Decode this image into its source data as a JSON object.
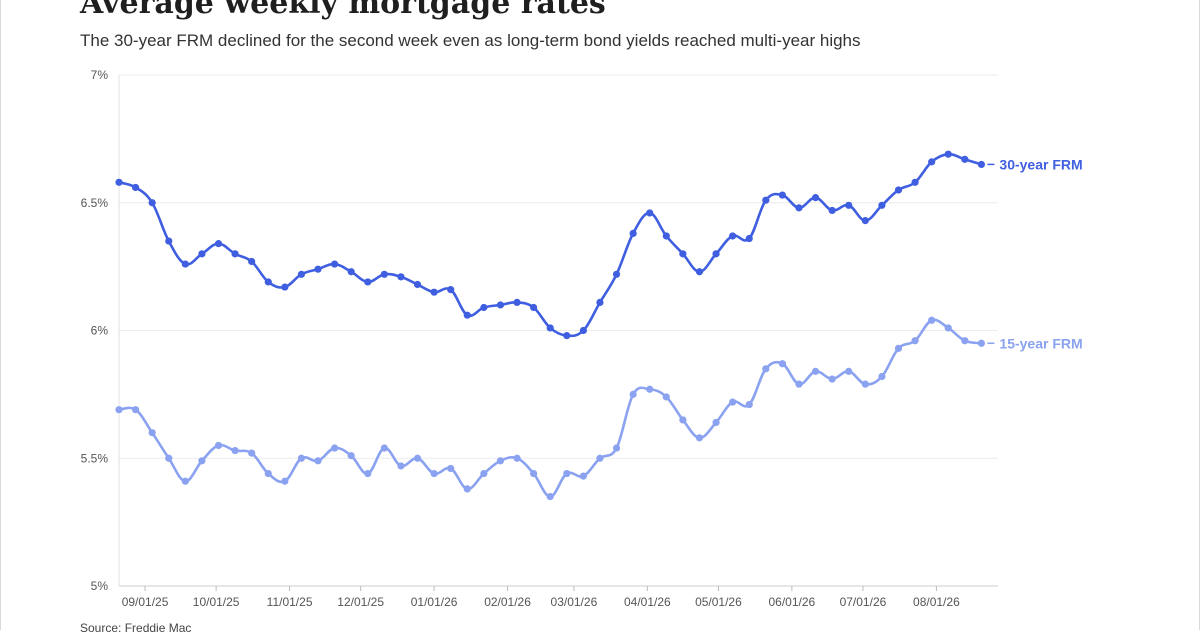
{
  "header": {
    "title": "Average weekly mortgage rates",
    "subtitle": "The 30-year FRM declined for the second week even as long-term bond yields reached multi-year highs"
  },
  "footer": {
    "source": "Source: Freddie Mac"
  },
  "chart_data": {
    "type": "line",
    "title": "Average weekly mortgage rates",
    "subtitle": "The 30-year FRM declined for the second week even as long-term bond yields reached multi-year highs",
    "xlabel": "",
    "ylabel": "",
    "ylim": [
      5,
      7
    ],
    "yticks": [
      5,
      5.5,
      6,
      6.5,
      7
    ],
    "ytick_labels": [
      "5%",
      "5.5%",
      "6%",
      "6.5%",
      "7%"
    ],
    "x_tick_labels": [
      "09/01/25",
      "10/01/25",
      "11/01/25",
      "12/01/25",
      "01/01/26",
      "02/01/26",
      "03/01/26",
      "04/01/26",
      "05/01/26",
      "06/01/26",
      "07/01/26",
      "08/01/26"
    ],
    "grid": "horizontal",
    "legend": "inline labels at right end of lines",
    "x": [
      "08/21/25",
      "08/28/25",
      "09/04/25",
      "09/11/25",
      "09/18/25",
      "09/25/25",
      "10/02/25",
      "10/09/25",
      "10/16/25",
      "10/23/25",
      "10/30/25",
      "11/06/25",
      "11/13/25",
      "11/20/25",
      "11/27/25",
      "12/04/25",
      "12/11/25",
      "12/18/25",
      "12/25/25",
      "01/01/26",
      "01/08/26",
      "01/15/26",
      "01/22/26",
      "01/29/26",
      "02/05/26",
      "02/12/26",
      "02/19/26",
      "02/26/26",
      "03/05/26",
      "03/12/26",
      "03/19/26",
      "03/26/26",
      "04/02/26",
      "04/09/26",
      "04/16/26",
      "04/23/26",
      "04/30/26",
      "05/07/26",
      "05/14/26",
      "05/21/26",
      "05/28/26",
      "06/04/26",
      "06/11/26",
      "06/18/26",
      "06/25/26",
      "07/02/26",
      "07/09/26",
      "07/16/26",
      "07/23/26",
      "07/30/26",
      "08/06/26",
      "08/13/26",
      "08/20/26",
      "08/27/26"
    ],
    "series": [
      {
        "name": "30-year FRM",
        "color": "#3f5fe0",
        "values": [
          6.58,
          6.56,
          6.5,
          6.35,
          6.26,
          6.3,
          6.34,
          6.3,
          6.27,
          6.19,
          6.17,
          6.22,
          6.24,
          6.26,
          6.23,
          6.19,
          6.22,
          6.21,
          6.18,
          6.15,
          6.16,
          6.06,
          6.09,
          6.1,
          6.11,
          6.09,
          6.01,
          5.98,
          6.0,
          6.11,
          6.22,
          6.38,
          6.46,
          6.37,
          6.3,
          6.23,
          6.3,
          6.37,
          6.36,
          6.51,
          6.53,
          6.48,
          6.52,
          6.47,
          6.49,
          6.43,
          6.49,
          6.55,
          6.58,
          6.66,
          6.69,
          6.67,
          6.65,
          null
        ]
      },
      {
        "name": "15-year FRM",
        "color": "#8aa2f0",
        "values": [
          5.69,
          5.69,
          5.6,
          5.5,
          5.41,
          5.49,
          5.55,
          5.53,
          5.52,
          5.44,
          5.41,
          5.5,
          5.49,
          5.54,
          5.51,
          5.44,
          5.54,
          5.47,
          5.5,
          5.44,
          5.46,
          5.38,
          5.44,
          5.49,
          5.5,
          5.44,
          5.35,
          5.44,
          5.43,
          5.5,
          5.54,
          5.75,
          5.77,
          5.74,
          5.65,
          5.58,
          5.64,
          5.72,
          5.71,
          5.85,
          5.87,
          5.79,
          5.84,
          5.81,
          5.84,
          5.79,
          5.82,
          5.93,
          5.96,
          6.04,
          6.01,
          5.96,
          5.95,
          null
        ]
      }
    ]
  }
}
